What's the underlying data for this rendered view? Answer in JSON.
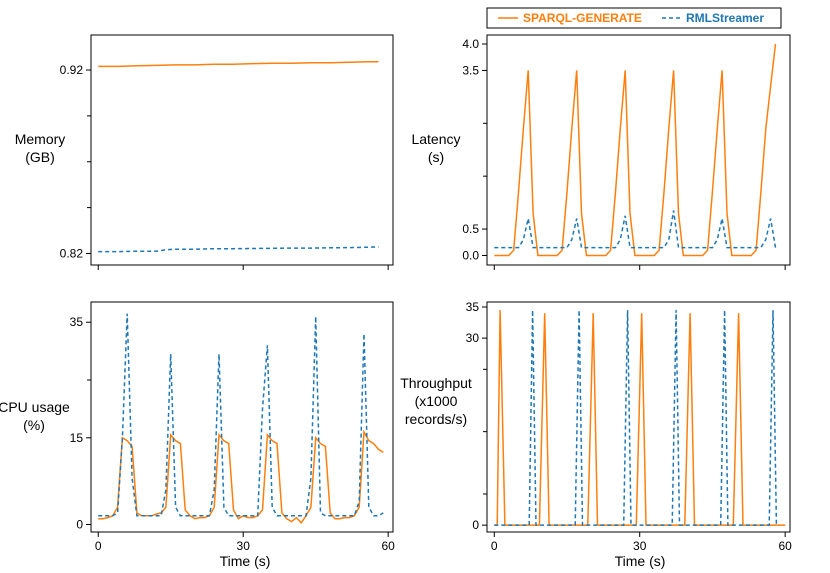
{
  "colors": {
    "sparql": "#ff7f0e",
    "rml": "#1f77b4",
    "axis": "#000000"
  },
  "legend": {
    "sparql": "SPARQL-GENERATE",
    "rml": "RMLStreamer"
  },
  "chart_data": [
    {
      "id": "memory",
      "type": "line",
      "ylabel": [
        "Memory",
        "(GB)"
      ],
      "xlabel": "",
      "xlim": [
        -1.5,
        61
      ],
      "ylim": [
        0.8137,
        0.9391
      ],
      "yticks": [
        0.82,
        0.92
      ],
      "ytick_labels": [
        "0.82",
        "0.92"
      ],
      "xticks": [
        0,
        30,
        60
      ],
      "xtick_labels": [],
      "series": [
        {
          "name": "SPARQL-GENERATE",
          "x": [
            0,
            4,
            8,
            12,
            16,
            20,
            24,
            28,
            32,
            36,
            40,
            44,
            48,
            52,
            56,
            58
          ],
          "y": [
            0.922,
            0.922,
            0.9223,
            0.9225,
            0.9228,
            0.9228,
            0.9232,
            0.9232,
            0.9235,
            0.9237,
            0.9237,
            0.924,
            0.924,
            0.9242,
            0.9245,
            0.9245
          ]
        },
        {
          "name": "RMLStreamer",
          "x": [
            0,
            4,
            8,
            12,
            14,
            16,
            20,
            24,
            28,
            32,
            36,
            40,
            44,
            48,
            52,
            56,
            58
          ],
          "y": [
            0.821,
            0.821,
            0.8212,
            0.8212,
            0.822,
            0.8223,
            0.8223,
            0.8226,
            0.8226,
            0.8227,
            0.8228,
            0.8229,
            0.8229,
            0.8231,
            0.8232,
            0.8234,
            0.8236
          ]
        }
      ]
    },
    {
      "id": "latency",
      "type": "line",
      "ylabel": [
        "Latency",
        "(s)"
      ],
      "xlabel": "",
      "xlim": [
        -1.5,
        61
      ],
      "ylim": [
        -0.18,
        4.17
      ],
      "yticks": [
        0.0,
        0.5,
        3.5,
        4.0
      ],
      "ytick_labels": [
        "0.0",
        "0.5",
        "3.5",
        "4.0"
      ],
      "xticks": [
        0,
        30,
        60
      ],
      "xtick_labels": [],
      "series": [
        {
          "name": "SPARQL-GENERATE",
          "x": [
            0,
            3,
            4,
            5,
            6,
            7,
            8,
            9,
            10,
            13,
            14,
            15,
            16,
            17,
            18,
            19,
            20,
            23,
            24,
            25,
            26,
            27,
            28,
            29,
            30,
            33,
            34,
            35,
            36,
            37,
            38,
            39,
            40,
            43,
            44,
            45,
            46,
            47,
            48,
            49,
            50,
            53,
            54,
            55,
            56,
            57,
            58
          ],
          "y": [
            0.0,
            0.0,
            0.1,
            1.2,
            2.4,
            3.5,
            0.8,
            0.0,
            0.0,
            0.0,
            0.1,
            1.2,
            2.4,
            3.5,
            0.8,
            0.0,
            0.0,
            0.0,
            0.1,
            1.2,
            2.4,
            3.5,
            0.8,
            0.0,
            0.0,
            0.0,
            0.1,
            1.2,
            2.4,
            3.5,
            0.8,
            0.0,
            0.0,
            0.0,
            0.1,
            1.2,
            2.4,
            3.5,
            0.8,
            0.0,
            0.0,
            0.0,
            0.1,
            1.2,
            2.4,
            3.2,
            4.0
          ]
        },
        {
          "name": "RMLStreamer",
          "x": [
            0,
            5,
            6,
            7,
            8,
            15,
            16,
            17,
            18,
            25,
            26,
            27,
            28,
            35,
            36,
            37,
            38,
            45,
            46,
            47,
            48,
            55,
            56,
            57,
            58
          ],
          "y": [
            0.15,
            0.15,
            0.3,
            0.7,
            0.15,
            0.15,
            0.3,
            0.7,
            0.15,
            0.15,
            0.3,
            0.75,
            0.15,
            0.15,
            0.3,
            0.85,
            0.15,
            0.15,
            0.3,
            0.7,
            0.15,
            0.15,
            0.3,
            0.7,
            0.15
          ]
        }
      ]
    },
    {
      "id": "cpu",
      "type": "line",
      "ylabel": [
        "CPU usage",
        "(%)"
      ],
      "xlabel": "Time (s)",
      "xlim": [
        -1.5,
        61
      ],
      "ylim": [
        -1.3,
        38.5
      ],
      "yticks": [
        0,
        15,
        35
      ],
      "ytick_labels": [
        "0",
        "15",
        "35"
      ],
      "xticks": [
        0,
        30,
        60
      ],
      "xtick_labels": [
        "0",
        "30",
        "60"
      ],
      "series": [
        {
          "name": "SPARQL-GENERATE",
          "x": [
            0,
            1,
            2,
            3,
            4,
            5,
            6,
            7,
            8,
            9,
            10,
            11,
            12,
            13,
            14,
            15,
            16,
            17,
            18,
            19,
            20,
            21,
            22,
            23,
            24,
            25,
            26,
            27,
            28,
            29,
            30,
            31,
            32,
            33,
            34,
            35,
            36,
            37,
            38,
            39,
            40,
            41,
            42,
            43,
            44,
            45,
            46,
            47,
            48,
            49,
            50,
            51,
            52,
            53,
            54,
            55,
            56,
            57,
            58,
            59
          ],
          "y": [
            1.0,
            1.0,
            1.2,
            1.5,
            3.0,
            15.0,
            14.5,
            13.5,
            2.0,
            1.5,
            1.5,
            1.5,
            1.8,
            2.0,
            3.0,
            15.5,
            14.5,
            14.0,
            2.5,
            1.5,
            1.0,
            1.2,
            1.2,
            1.5,
            3.0,
            15.5,
            14.5,
            14.0,
            2.5,
            1.0,
            1.5,
            1.2,
            1.2,
            1.5,
            2.5,
            15.5,
            14.5,
            14.0,
            2.0,
            1.0,
            0.5,
            1.2,
            0.3,
            1.5,
            3.0,
            15.0,
            14.0,
            13.5,
            2.0,
            1.0,
            1.0,
            1.2,
            1.2,
            1.5,
            3.0,
            16.0,
            14.5,
            14.0,
            13.0,
            12.5
          ]
        },
        {
          "name": "RMLStreamer",
          "x": [
            0,
            1,
            2,
            3,
            4,
            5,
            6,
            7,
            8,
            9,
            10,
            11,
            12,
            13,
            14,
            15,
            16,
            17,
            18,
            19,
            20,
            21,
            22,
            23,
            24,
            25,
            26,
            27,
            28,
            29,
            30,
            31,
            32,
            33,
            34,
            35,
            36,
            37,
            38,
            39,
            40,
            41,
            42,
            43,
            44,
            45,
            46,
            47,
            48,
            49,
            50,
            51,
            52,
            53,
            54,
            55,
            56,
            57,
            58,
            59
          ],
          "y": [
            1.5,
            1.5,
            1.5,
            1.5,
            2.0,
            15.0,
            36.5,
            8.0,
            1.5,
            1.5,
            1.5,
            1.5,
            1.5,
            1.5,
            6.0,
            29.5,
            3.0,
            1.5,
            1.5,
            1.5,
            1.5,
            1.5,
            1.5,
            1.5,
            6.0,
            29.5,
            3.0,
            1.5,
            1.5,
            1.5,
            1.5,
            1.5,
            1.5,
            1.5,
            20.0,
            31.0,
            3.0,
            1.5,
            1.5,
            1.5,
            1.5,
            1.5,
            1.5,
            1.5,
            8.0,
            36.0,
            2.0,
            1.5,
            1.5,
            1.5,
            1.5,
            1.5,
            1.5,
            1.5,
            4.0,
            33.0,
            3.0,
            1.5,
            1.5,
            2.0
          ]
        }
      ]
    },
    {
      "id": "throughput",
      "type": "line",
      "ylabel": [
        "Throughput",
        "(x1000",
        "records/s)"
      ],
      "xlabel": "Time (s)",
      "xlim": [
        -1.5,
        61
      ],
      "ylim": [
        -1.1,
        35.8
      ],
      "yticks": [
        0,
        30,
        35
      ],
      "ytick_labels": [
        "0",
        "30",
        "35"
      ],
      "xticks": [
        0,
        30,
        60
      ],
      "xtick_labels": [
        "0",
        "30",
        "60"
      ],
      "series": [
        {
          "name": "SPARQL-GENERATE",
          "x": [
            0,
            0.6,
            1.2,
            2.2,
            2.8,
            9.3,
            10.4,
            11.3,
            19.3,
            20.4,
            21.3,
            29.3,
            30.4,
            31.3,
            39.3,
            40.4,
            41.3,
            49.3,
            50.4,
            51.3,
            60
          ],
          "y": [
            0,
            0,
            34.5,
            0,
            0,
            0,
            34.0,
            0,
            0,
            34.0,
            0,
            0,
            34.0,
            0,
            0,
            34.0,
            0,
            0,
            34.0,
            0,
            0
          ]
        },
        {
          "name": "RMLStreamer",
          "x": [
            0,
            7.2,
            7.9,
            8.6,
            16.7,
            17.5,
            18.2,
            26.7,
            27.5,
            28.2,
            36.7,
            37.5,
            38.2,
            46.7,
            47.5,
            48.2,
            56.7,
            57.5,
            58.2
          ],
          "y": [
            0,
            0,
            34.5,
            0,
            0,
            34.5,
            0,
            0,
            34.5,
            0,
            0,
            34.5,
            0,
            0,
            34.5,
            0,
            0,
            34.5,
            0
          ]
        }
      ]
    }
  ]
}
